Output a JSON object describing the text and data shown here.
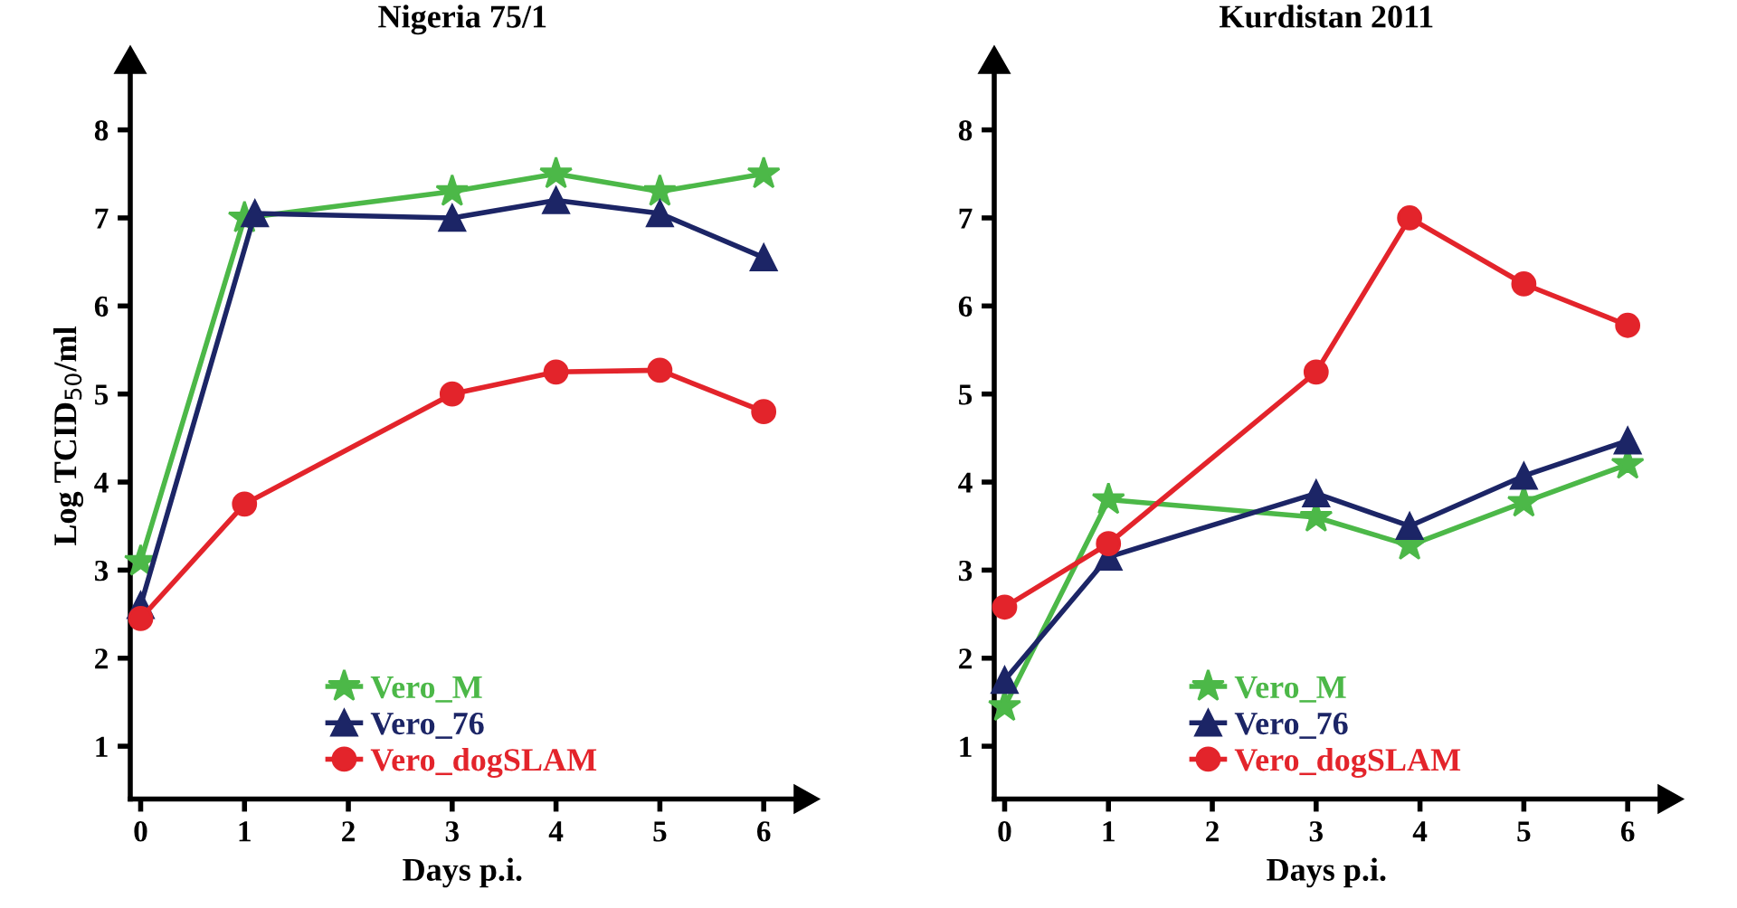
{
  "chart_data": [
    {
      "type": "line",
      "title": "Nigeria 75/1",
      "xlabel": "Days p.i.",
      "ylabel": "Log TCID$_{50}$/ml",
      "xlim": [
        -0.1,
        6.3
      ],
      "ylim": [
        0.4,
        8.65
      ],
      "xticks": [
        0,
        1,
        2,
        3,
        4,
        5,
        6
      ],
      "yticks": [
        1,
        2,
        3,
        4,
        5,
        6,
        7,
        8
      ],
      "grid": false,
      "legend": "bottom",
      "series": [
        {
          "name": "Vero_M",
          "color": "#4cb848",
          "marker": "star",
          "x": [
            0,
            1,
            3,
            4,
            5,
            6
          ],
          "values": [
            3.1,
            7.0,
            7.3,
            7.5,
            7.3,
            7.5
          ]
        },
        {
          "name": "Vero_76",
          "color": "#1c2566",
          "marker": "triangle",
          "x": [
            0,
            1.1,
            3,
            4,
            5,
            6
          ],
          "values": [
            2.6,
            7.05,
            7.0,
            7.2,
            7.05,
            6.55
          ]
        },
        {
          "name": "Vero_dogSLAM",
          "color": "#e3242b",
          "marker": "circle",
          "x": [
            0,
            1,
            3,
            4,
            5,
            6
          ],
          "values": [
            2.45,
            3.75,
            5.0,
            5.25,
            5.27,
            4.8
          ]
        }
      ]
    },
    {
      "type": "line",
      "title": "Kurdistan 2011",
      "xlabel": "Days p.i.",
      "xlim": [
        -0.1,
        6.3
      ],
      "ylim": [
        0.4,
        8.65
      ],
      "xticks": [
        0,
        1,
        2,
        3,
        4,
        5,
        6
      ],
      "yticks": [
        1,
        2,
        3,
        4,
        5,
        6,
        7,
        8
      ],
      "grid": false,
      "legend": "bottom",
      "series": [
        {
          "name": "Vero_M",
          "color": "#4cb848",
          "marker": "star",
          "x": [
            0,
            1,
            3,
            3.9,
            5,
            6
          ],
          "values": [
            1.45,
            3.8,
            3.6,
            3.28,
            3.77,
            4.2
          ]
        },
        {
          "name": "Vero_76",
          "color": "#1c2566",
          "marker": "triangle",
          "x": [
            0,
            1,
            3,
            3.9,
            5,
            6
          ],
          "values": [
            1.75,
            3.15,
            3.87,
            3.5,
            4.07,
            4.47
          ]
        },
        {
          "name": "Vero_dogSLAM",
          "color": "#e3242b",
          "marker": "circle",
          "x": [
            0,
            1,
            3,
            3.9,
            5,
            6
          ],
          "values": [
            2.58,
            3.3,
            5.25,
            7.0,
            6.25,
            5.78
          ]
        }
      ]
    }
  ]
}
